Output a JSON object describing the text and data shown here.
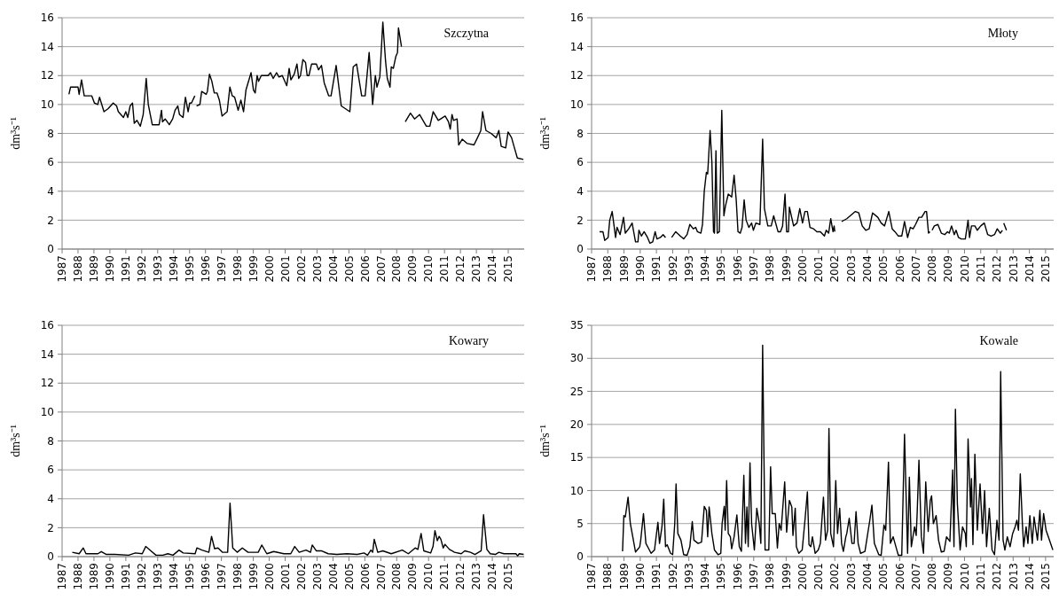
{
  "chart_data": [
    {
      "type": "line",
      "title": "Szczytna",
      "ylabel": "dm³s⁻¹",
      "xlim": [
        1987,
        2016
      ],
      "xticks": [
        1987,
        1988,
        1989,
        1990,
        1991,
        1992,
        1993,
        1994,
        1995,
        1996,
        1997,
        1998,
        1999,
        2000,
        2001,
        2002,
        2003,
        2004,
        2005,
        2006,
        2007,
        2008,
        2009,
        2010,
        2011,
        2012,
        2013,
        2014,
        2015
      ],
      "ylim": [
        0,
        16
      ],
      "yticks": [
        0,
        2,
        4,
        6,
        8,
        10,
        12,
        14,
        16
      ],
      "grid": "y",
      "series": [
        {
          "color": "#000000",
          "x": [
            1987.43,
            1987.53,
            1988.0,
            1988.07,
            1988.22,
            1988.39,
            1988.86,
            1989.03,
            1989.24,
            1989.35,
            1989.63,
            1989.88,
            1990.21,
            1990.42,
            1990.53,
            1990.85,
            1991.0,
            1991.12,
            1991.27,
            1991.42,
            1991.53,
            1991.7,
            1991.91,
            1992.09,
            1992.28,
            1992.41,
            1992.66,
            1993.09,
            1993.24,
            1993.3,
            1993.47,
            1993.73,
            1993.94,
            1994.09,
            1994.26,
            1994.37,
            1994.59,
            1994.74,
            1994.91,
            1995.01,
            1995.12,
            1995.33,
            1995.38,
            1995.44,
            1995.65,
            1995.76,
            1996.04,
            1996.12,
            1996.25,
            1996.4,
            1996.55,
            1996.72,
            1996.87,
            1997.04,
            1997.36,
            1997.53,
            1997.68,
            1997.83,
            1998.05,
            1998.22,
            1998.39,
            1998.54,
            1998.86,
            1999.01,
            1999.12,
            1999.24,
            1999.33,
            1999.5,
            1999.93,
            2000.08,
            2000.25,
            2000.46,
            2000.61,
            2000.82,
            2001.1,
            2001.25,
            2001.36,
            2001.57,
            2001.74,
            2001.85,
            2001.96,
            2002.11,
            2002.28,
            2002.38,
            2002.49,
            2002.66,
            2002.96,
            2003.09,
            2003.28,
            2003.45,
            2003.73,
            2003.88,
            2004.2,
            2004.52,
            2005.06,
            2005.27,
            2005.48,
            2005.8,
            2006.02,
            2006.27,
            2006.49,
            2006.66,
            2006.76,
            2006.94,
            2007.13,
            2007.3,
            2007.41,
            2007.58,
            2007.66,
            2007.79,
            2007.94,
            2008.05,
            2008.11,
            2008.3,
            2008.42,
            2008.54,
            2008.86,
            2009.12,
            2009.44,
            2009.86,
            2010.08,
            2010.29,
            2010.61,
            2011.04,
            2011.25,
            2011.36,
            2011.47,
            2011.57,
            2011.79,
            2011.89,
            2012.11,
            2012.43,
            2012.85,
            2013.07,
            2013.28,
            2013.39,
            2013.6,
            2013.92,
            2014.24,
            2014.41,
            2014.56,
            2014.84,
            2014.99,
            2015.21,
            2015.31,
            2015.57,
            2015.95
          ],
          "values": [
            10.7,
            11.2,
            11.2,
            10.7,
            11.7,
            10.6,
            10.6,
            10.1,
            10.0,
            10.5,
            9.5,
            9.7,
            10.1,
            9.9,
            9.5,
            9.1,
            9.5,
            9.1,
            9.9,
            10.1,
            8.7,
            8.9,
            8.5,
            9.3,
            11.8,
            10.0,
            8.6,
            8.6,
            9.6,
            8.8,
            9.0,
            8.6,
            9.0,
            9.6,
            9.9,
            9.3,
            9.1,
            10.5,
            9.5,
            10.1,
            10.1,
            10.6,
            null,
            9.9,
            10.0,
            10.9,
            10.7,
            10.9,
            12.1,
            11.6,
            10.8,
            10.8,
            10.3,
            9.2,
            9.5,
            11.2,
            10.6,
            10.5,
            9.6,
            10.3,
            9.5,
            11.0,
            12.2,
            11.0,
            10.8,
            12.0,
            11.6,
            12.0,
            12.0,
            12.2,
            11.8,
            12.2,
            11.9,
            12.0,
            11.3,
            12.5,
            11.7,
            12.1,
            12.8,
            11.8,
            12.0,
            13.1,
            12.9,
            12.0,
            12.0,
            12.8,
            12.8,
            12.4,
            12.7,
            11.5,
            10.6,
            10.6,
            12.7,
            9.9,
            9.5,
            12.6,
            12.8,
            10.6,
            10.6,
            13.6,
            10.0,
            12.0,
            11.2,
            11.9,
            15.7,
            13.0,
            11.8,
            11.2,
            12.6,
            12.5,
            13.3,
            13.6,
            15.3,
            14.0,
            null,
            8.8,
            9.4,
            9.0,
            9.3,
            8.5,
            8.5,
            9.5,
            8.9,
            9.2,
            8.8,
            8.3,
            9.3,
            8.9,
            9.0,
            7.2,
            7.6,
            7.3,
            7.2,
            7.7,
            8.2,
            9.5,
            8.2,
            8.0,
            7.7,
            8.2,
            7.1,
            7.0,
            8.1,
            7.7,
            7.3,
            6.3,
            6.2
          ]
        }
      ]
    },
    {
      "type": "line",
      "title": "Młoty",
      "ylabel": "dm³s⁻¹",
      "xlim": [
        1987,
        2015.5
      ],
      "xticks": [
        1987,
        1988,
        1989,
        1990,
        1991,
        1992,
        1993,
        1994,
        1995,
        1996,
        1997,
        1998,
        1999,
        2000,
        2001,
        2002,
        2003,
        2004,
        2005,
        2006,
        2007,
        2008,
        2009,
        2010,
        2011,
        2012,
        2013,
        2014,
        2015
      ],
      "ylim": [
        0,
        16
      ],
      "yticks": [
        0,
        2,
        4,
        6,
        8,
        10,
        12,
        14,
        16
      ],
      "grid": "y",
      "series": [
        {
          "color": "#000000",
          "x": [
            1987.49,
            1987.7,
            1987.81,
            1988.02,
            1988.12,
            1988.27,
            1988.48,
            1988.57,
            1988.76,
            1988.97,
            1989.08,
            1989.29,
            1989.5,
            1989.71,
            1989.86,
            1989.92,
            1990.07,
            1990.24,
            1990.45,
            1990.6,
            1990.77,
            1990.92,
            1991.03,
            1991.24,
            1991.41,
            1991.56,
            1991.75,
            1991.94,
            1992.19,
            1992.47,
            1992.68,
            1992.89,
            1993.06,
            1993.27,
            1993.42,
            1993.53,
            1993.74,
            1993.84,
            1993.95,
            1994.08,
            1994.16,
            1994.31,
            1994.42,
            1994.52,
            1994.58,
            1994.67,
            1994.75,
            1994.88,
            1995.03,
            1995.16,
            1995.26,
            1995.43,
            1995.64,
            1995.79,
            1995.92,
            1996.03,
            1996.17,
            1996.28,
            1996.41,
            1996.53,
            1996.7,
            1996.87,
            1996.98,
            1997.13,
            1997.38,
            1997.55,
            1997.66,
            1997.87,
            1998.08,
            1998.23,
            1998.5,
            1998.65,
            1998.78,
            1998.93,
            1999.03,
            1999.14,
            1999.2,
            1999.46,
            1999.67,
            1999.84,
            2000.01,
            2000.16,
            2000.31,
            2000.47,
            2000.69,
            2000.9,
            2001.11,
            2001.36,
            2001.47,
            2001.62,
            2001.75,
            2001.89,
            2001.96,
            2002.0,
            2002.21,
            2002.42,
            2002.74,
            2002.95,
            2003.27,
            2003.48,
            2003.69,
            2003.91,
            2004.12,
            2004.33,
            2004.65,
            2004.86,
            2005.07,
            2005.33,
            2005.54,
            2005.71,
            2005.92,
            2006.13,
            2006.3,
            2006.49,
            2006.66,
            2006.83,
            2006.98,
            2007.19,
            2007.36,
            2007.57,
            2007.66,
            2007.78,
            2007.87,
            2007.93,
            2008.0,
            2008.14,
            2008.36,
            2008.57,
            2008.78,
            2008.95,
            2009.06,
            2009.2,
            2009.37,
            2009.48,
            2009.63,
            2009.8,
            2010.05,
            2010.22,
            2010.31,
            2010.43,
            2010.64,
            2010.79,
            2011.0,
            2011.22,
            2011.43,
            2011.64,
            2011.85,
            2012.02,
            2012.21,
            2012.34,
            2012.38,
            2012.42,
            2012.59
          ],
          "values": [
            1.2,
            1.2,
            0.6,
            0.8,
            2.0,
            2.6,
            0.8,
            1.5,
            1.0,
            2.2,
            1.1,
            1.4,
            1.8,
            0.5,
            0.5,
            1.3,
            0.9,
            1.2,
            0.8,
            0.4,
            0.5,
            1.2,
            0.7,
            0.8,
            1.0,
            0.8,
            null,
            0.8,
            1.2,
            0.9,
            0.7,
            1.0,
            1.7,
            1.4,
            1.5,
            1.2,
            1.1,
            1.7,
            4.0,
            5.3,
            5.2,
            8.2,
            6.0,
            1.2,
            1.1,
            6.8,
            1.1,
            1.2,
            9.6,
            2.3,
            3.0,
            3.8,
            3.6,
            5.1,
            3.4,
            1.2,
            1.1,
            1.5,
            3.4,
            2.0,
            1.5,
            1.8,
            1.3,
            1.8,
            1.7,
            7.6,
            2.8,
            1.6,
            1.6,
            2.3,
            1.2,
            1.2,
            1.6,
            3.8,
            1.2,
            1.2,
            2.9,
            1.6,
            1.8,
            2.8,
            1.8,
            2.6,
            2.6,
            1.5,
            1.4,
            1.2,
            1.2,
            0.9,
            1.3,
            1.1,
            2.1,
            1.2,
            1.6,
            1.2,
            null,
            1.9,
            2.1,
            2.3,
            2.6,
            2.5,
            1.6,
            1.3,
            1.4,
            2.5,
            2.2,
            1.8,
            1.6,
            2.6,
            1.4,
            1.2,
            0.9,
            0.9,
            1.9,
            0.8,
            1.5,
            1.4,
            1.7,
            2.2,
            2.2,
            2.6,
            2.6,
            1.1,
            1.2,
            null,
            1.3,
            1.6,
            1.7,
            1.1,
            1.0,
            1.2,
            1.1,
            1.6,
            1.0,
            1.3,
            0.8,
            0.7,
            0.7,
            2.0,
            0.8,
            1.6,
            1.6,
            1.3,
            1.6,
            1.8,
            1.0,
            0.9,
            1.0,
            1.4,
            1.1,
            1.3,
            null,
            1.8,
            1.3
          ]
        }
      ]
    },
    {
      "type": "line",
      "title": "Kowary",
      "ylabel": "dm³s⁻¹",
      "xlim": [
        1987,
        2016
      ],
      "xticks": [
        1987,
        1988,
        1989,
        1990,
        1991,
        1992,
        1993,
        1994,
        1995,
        1996,
        1997,
        1998,
        1999,
        2000,
        2001,
        2002,
        2003,
        2004,
        2005,
        2006,
        2007,
        2008,
        2009,
        2010,
        2011,
        2012,
        2013,
        2014,
        2015
      ],
      "ylim": [
        0,
        16
      ],
      "yticks": [
        0,
        2,
        4,
        6,
        8,
        10,
        12,
        14,
        16
      ],
      "grid": "y",
      "series": [
        {
          "color": "#000000",
          "x": [
            1987.64,
            1988.07,
            1988.33,
            1988.5,
            1989.25,
            1989.46,
            1989.78,
            1990.32,
            1991.18,
            1991.6,
            1992.03,
            1992.25,
            1992.57,
            1992.89,
            1993.32,
            1993.64,
            1993.96,
            1994.34,
            1994.6,
            1995.35,
            1995.46,
            1995.78,
            1996.21,
            1996.38,
            1996.57,
            1996.79,
            1997.06,
            1997.39,
            1997.54,
            1997.71,
            1997.99,
            1998.31,
            1998.67,
            1999.31,
            1999.53,
            1999.85,
            2000.28,
            2000.92,
            2001.35,
            2001.6,
            2001.88,
            2002.31,
            2002.59,
            2002.7,
            2002.95,
            2003.27,
            2003.7,
            2004.24,
            2004.88,
            2005.52,
            2005.95,
            2006.17,
            2006.38,
            2006.49,
            2006.59,
            2006.81,
            2007.13,
            2007.66,
            2008.35,
            2008.73,
            2009.16,
            2009.33,
            2009.53,
            2009.7,
            2010.13,
            2010.28,
            2010.4,
            2010.55,
            2010.66,
            2010.77,
            2010.92,
            2011.03,
            2011.31,
            2011.63,
            2012.05,
            2012.27,
            2012.63,
            2012.91,
            2013.3,
            2013.45,
            2013.66,
            2013.87,
            2014.19,
            2014.41,
            2014.73,
            2015.48,
            2015.59,
            2015.69,
            2015.97
          ],
          "values": [
            0.3,
            0.2,
            0.6,
            0.2,
            0.2,
            0.35,
            0.15,
            0.15,
            0.1,
            0.25,
            0.2,
            0.7,
            0.4,
            0.1,
            0.1,
            0.2,
            0.1,
            0.45,
            0.25,
            0.2,
            0.6,
            0.45,
            0.3,
            1.4,
            0.55,
            0.6,
            0.3,
            0.3,
            3.7,
            0.6,
            0.3,
            0.6,
            0.3,
            0.3,
            0.8,
            0.2,
            0.35,
            0.2,
            0.2,
            0.7,
            0.3,
            0.45,
            0.3,
            0.8,
            0.4,
            0.4,
            0.2,
            0.15,
            0.2,
            0.15,
            0.25,
            0.1,
            0.45,
            0.3,
            1.2,
            0.3,
            0.4,
            0.2,
            0.45,
            0.2,
            0.6,
            0.5,
            1.6,
            0.4,
            0.25,
            0.7,
            1.8,
            1.1,
            1.4,
            1.2,
            0.6,
            0.85,
            0.5,
            0.3,
            0.2,
            0.4,
            0.3,
            0.15,
            0.4,
            2.9,
            0.5,
            0.2,
            0.15,
            0.3,
            0.2,
            0.2,
            0.05,
            0.2,
            0.15
          ]
        }
      ]
    },
    {
      "type": "line",
      "title": "Kowale",
      "ylabel": "dm³s⁻¹",
      "xlim": [
        1987,
        2015.5
      ],
      "xticks": [
        1987,
        1988,
        1989,
        1990,
        1991,
        1992,
        1993,
        1994,
        1995,
        1996,
        1997,
        1998,
        1999,
        2000,
        2001,
        2002,
        2003,
        2004,
        2005,
        2006,
        2007,
        2008,
        2009,
        2010,
        2011,
        2012,
        2013,
        2014,
        2015
      ],
      "ylim": [
        0,
        35
      ],
      "yticks": [
        0,
        5,
        10,
        15,
        20,
        25,
        30,
        35
      ],
      "grid": "y",
      "series": [
        {
          "color": "#000000",
          "x": [
            1988.91,
            1988.99,
            1989.08,
            1989.25,
            1989.39,
            1989.54,
            1989.71,
            1989.88,
            1989.97,
            1990.03,
            1990.2,
            1990.35,
            1990.52,
            1990.67,
            1990.88,
            1991.09,
            1991.19,
            1991.34,
            1991.45,
            1991.56,
            1991.66,
            1991.87,
            1992.0,
            1992.13,
            1992.21,
            1992.32,
            1992.51,
            1992.68,
            1992.89,
            1993.06,
            1993.21,
            1993.31,
            1993.57,
            1993.78,
            1993.95,
            1994.08,
            1994.16,
            1994.25,
            1994.42,
            1994.58,
            1994.8,
            1994.97,
            1995.05,
            1995.18,
            1995.24,
            1995.33,
            1995.43,
            1995.56,
            1995.64,
            1995.79,
            1995.96,
            1996.11,
            1996.24,
            1996.39,
            1996.49,
            1996.58,
            1996.66,
            1996.77,
            1996.87,
            1997.04,
            1997.19,
            1997.34,
            1997.44,
            1997.55,
            1997.7,
            1997.93,
            1998.04,
            1998.14,
            1998.33,
            1998.46,
            1998.57,
            1998.69,
            1998.91,
            1999.03,
            1999.2,
            1999.35,
            1999.42,
            1999.56,
            1999.63,
            1999.78,
            1999.99,
            2000.16,
            2000.31,
            2000.41,
            2000.52,
            2000.62,
            2000.79,
            2000.98,
            2001.11,
            2001.3,
            2001.43,
            2001.56,
            2001.64,
            2001.75,
            2001.92,
            2002.06,
            2002.17,
            2002.3,
            2002.42,
            2002.53,
            2002.68,
            2002.74,
            2002.89,
            2003.06,
            2003.19,
            2003.31,
            2003.44,
            2003.59,
            2003.86,
            2004.16,
            2004.29,
            2004.44,
            2004.71,
            2004.86,
            2005.03,
            2005.14,
            2005.31,
            2005.43,
            2005.6,
            2005.77,
            2005.92,
            2006.13,
            2006.3,
            2006.49,
            2006.6,
            2006.72,
            2006.92,
            2007.02,
            2007.08,
            2007.19,
            2007.34,
            2007.47,
            2007.61,
            2007.76,
            2007.89,
            2007.97,
            2008.08,
            2008.25,
            2008.4,
            2008.57,
            2008.74,
            2008.89,
            2009.1,
            2009.27,
            2009.35,
            2009.44,
            2009.56,
            2009.73,
            2009.88,
            2010.05,
            2010.11,
            2010.22,
            2010.37,
            2010.43,
            2010.52,
            2010.64,
            2010.79,
            2010.96,
            2011.11,
            2011.24,
            2011.36,
            2011.53,
            2011.7,
            2011.85,
            2012.0,
            2012.13,
            2012.23,
            2012.38,
            2012.49,
            2012.64,
            2012.81,
            2012.97,
            2013.12,
            2013.23,
            2013.33,
            2013.44,
            2013.57,
            2013.65,
            2013.8,
            2013.91,
            2014.03,
            2014.18,
            2014.29,
            2014.5,
            2014.65,
            2014.75,
            2014.88,
            2015.03,
            2015.45
          ],
          "values": [
            0.8,
            6.2,
            6.0,
            9.0,
            5.0,
            3.0,
            0.7,
            1.2,
            1.5,
            2.5,
            6.5,
            2.0,
            1.2,
            0.5,
            1.0,
            5.2,
            2.0,
            4.5,
            8.7,
            1.5,
            1.8,
            0.5,
            0.3,
            5.0,
            11.0,
            3.5,
            2.5,
            0.3,
            0.2,
            1.5,
            5.3,
            2.5,
            2.0,
            2.2,
            7.6,
            7.0,
            3.0,
            7.5,
            3.5,
            1.0,
            0.3,
            0.5,
            5.0,
            7.6,
            4.0,
            11.5,
            3.5,
            3.0,
            1.2,
            3.0,
            6.3,
            1.5,
            0.8,
            12.3,
            2.0,
            7.5,
            1.5,
            14.2,
            5.0,
            1.0,
            7.3,
            5.0,
            2.0,
            32.0,
            1.0,
            1.0,
            13.6,
            6.5,
            6.5,
            1.3,
            5.0,
            4.0,
            11.3,
            3.7,
            8.5,
            7.5,
            3.2,
            7.3,
            1.5,
            0.5,
            1.0,
            5.5,
            9.8,
            1.8,
            1.5,
            3.0,
            0.5,
            1.0,
            2.0,
            9.0,
            2.5,
            4.0,
            19.4,
            3.5,
            1.5,
            11.5,
            3.5,
            7.3,
            2.0,
            0.8,
            3.0,
            3.5,
            5.8,
            2.0,
            2.0,
            6.8,
            2.0,
            0.5,
            0.8,
            5.5,
            7.8,
            2.0,
            0.3,
            0.2,
            4.8,
            4.0,
            14.3,
            2.0,
            3.0,
            1.5,
            0.2,
            0.2,
            18.5,
            0.5,
            12.0,
            1.5,
            4.5,
            3.2,
            6.5,
            14.6,
            3.0,
            0.5,
            11.3,
            3.8,
            8.5,
            9.2,
            5.0,
            6.2,
            2.5,
            0.7,
            0.8,
            3.0,
            2.3,
            13.1,
            1.5,
            22.3,
            8.0,
            1.0,
            4.5,
            3.5,
            1.5,
            17.8,
            7.5,
            11.8,
            1.8,
            15.5,
            4.0,
            11.0,
            3.5,
            10.0,
            1.5,
            7.3,
            1.0,
            0.3,
            5.5,
            2.5,
            28.0,
            2.5,
            1.0,
            3.0,
            1.5,
            3.5,
            4.5,
            5.5,
            4.0,
            12.5,
            5.0,
            1.5,
            4.5,
            2.0,
            6.2,
            2.0,
            6.0,
            2.5,
            7.0,
            2.5,
            6.5,
            4.0,
            1.0
          ]
        }
      ]
    }
  ]
}
